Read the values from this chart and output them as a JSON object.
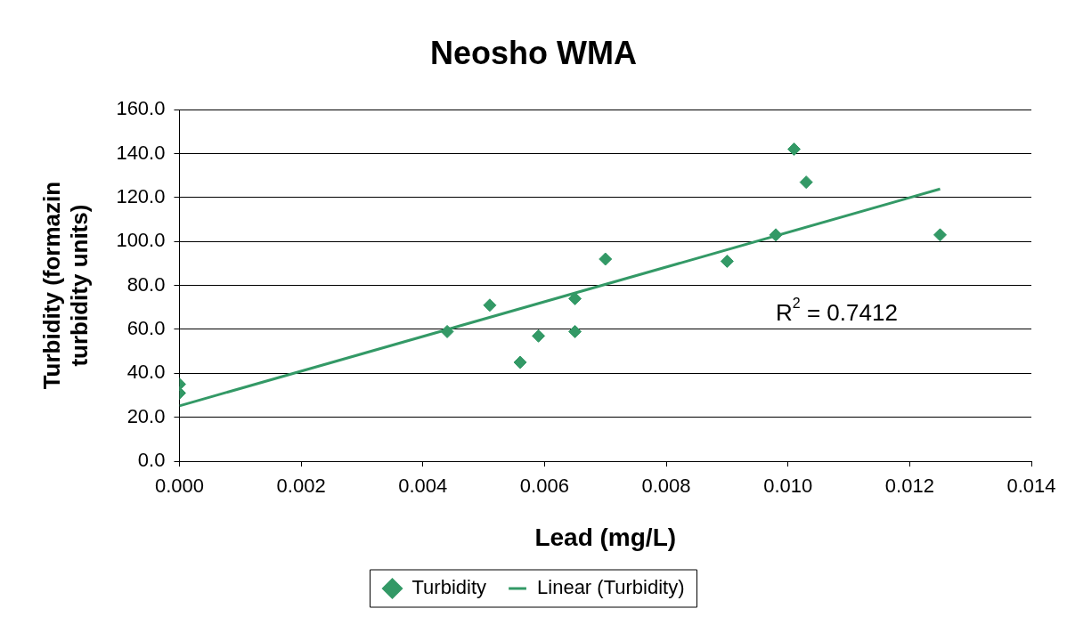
{
  "chart_data": {
    "type": "scatter",
    "title": "Neosho WMA",
    "xlabel": "Lead (mg/L)",
    "ylabel": "Turbidity (formazin turbidity units)",
    "xlim": [
      0,
      0.014
    ],
    "xticks": [
      {
        "value": 0,
        "label": "0.000"
      },
      {
        "value": 0.002,
        "label": "0.002"
      },
      {
        "value": 0.004,
        "label": "0.004"
      },
      {
        "value": 0.006,
        "label": "0.006"
      },
      {
        "value": 0.008,
        "label": "0.008"
      },
      {
        "value": 0.01,
        "label": "0.010"
      },
      {
        "value": 0.012,
        "label": "0.012"
      },
      {
        "value": 0.014,
        "label": "0.014"
      }
    ],
    "ylim": [
      0,
      160
    ],
    "yticks": [
      {
        "value": 0,
        "label": "0.0"
      },
      {
        "value": 20,
        "label": "20.0"
      },
      {
        "value": 40,
        "label": "40.0"
      },
      {
        "value": 60,
        "label": "60.0"
      },
      {
        "value": 80,
        "label": "80.0"
      },
      {
        "value": 100,
        "label": "100.0"
      },
      {
        "value": 120,
        "label": "120.0"
      },
      {
        "value": 140,
        "label": "140.0"
      },
      {
        "value": 160,
        "label": "160.0"
      }
    ],
    "grid": "y",
    "legend": "bottom",
    "series": [
      {
        "name": "Turbidity",
        "marker": "diamond",
        "color": "#339966",
        "x": [
          0,
          0,
          0.0044,
          0.0051,
          0.0056,
          0.0059,
          0.0065,
          0.0065,
          0.007,
          0.009,
          0.0098,
          0.0101,
          0.0103,
          0.0125
        ],
        "values": [
          35,
          31,
          59,
          71,
          45,
          57,
          74,
          59,
          92,
          91,
          103,
          142,
          127,
          103
        ]
      },
      {
        "name": "Linear (Turbidity)",
        "type": "line",
        "marker": "none",
        "color": "#339966",
        "x": [
          0,
          0.0125
        ],
        "values": [
          25.2,
          123.9
        ]
      }
    ],
    "annotations": [
      "R$^{2}$ = 0.7412"
    ]
  }
}
